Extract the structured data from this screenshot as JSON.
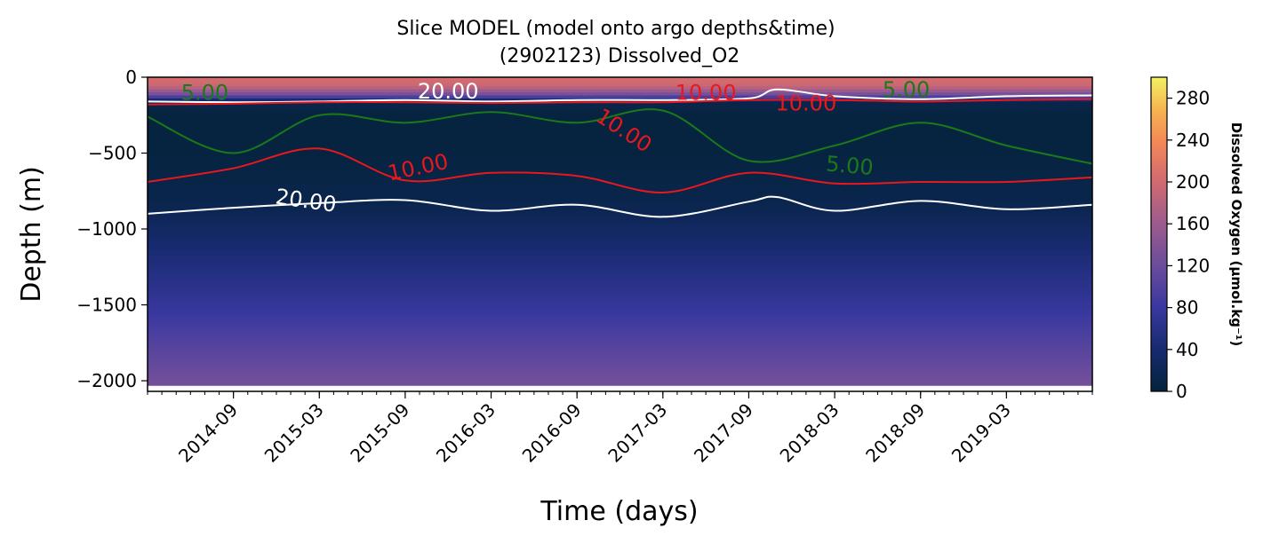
{
  "chart_data": {
    "type": "heatmap",
    "title_line1": "Slice MODEL (model onto argo depths&time)",
    "title_line2": "(2902123) Dissolved_O2",
    "xlabel": "Time (days)",
    "ylabel": "Depth (m)",
    "x_ticks": [
      "2014-09",
      "2015-03",
      "2015-09",
      "2016-03",
      "2016-09",
      "2017-03",
      "2017-09",
      "2018-03",
      "2018-09",
      "2019-03"
    ],
    "x_range": [
      "2014-03",
      "2019-09"
    ],
    "y_ticks": [
      0,
      -500,
      -1000,
      -1500,
      -2000
    ],
    "y_range": [
      -2070,
      0
    ],
    "data_depth_bottom": -2030,
    "colorbar": {
      "label": "Dissolved Oxygen (μmol.kg⁻¹)",
      "ticks": [
        0,
        40,
        80,
        120,
        160,
        200,
        240,
        280
      ],
      "range": [
        0,
        300
      ],
      "colormap": "thermal"
    },
    "depth_profile": {
      "depth": [
        0,
        -60,
        -120,
        -160,
        -250,
        -500,
        -800,
        -900,
        -1000,
        -1200,
        -1400,
        -1600,
        -1800,
        -2000
      ],
      "oxygen": [
        205,
        195,
        120,
        15,
        4,
        5,
        13,
        20,
        30,
        48,
        65,
        85,
        105,
        125
      ]
    },
    "contours": [
      {
        "level": "20.00",
        "color": "#ffffff",
        "name": "shallow",
        "dates": [
          "2014-03",
          "2014-09",
          "2015-03",
          "2015-09",
          "2016-03",
          "2016-09",
          "2017-03",
          "2017-09",
          "2017-11",
          "2018-03",
          "2018-09",
          "2019-03",
          "2019-09"
        ],
        "depths": [
          -160,
          -165,
          -160,
          -150,
          -160,
          -150,
          -150,
          -140,
          -80,
          -125,
          -145,
          -125,
          -120
        ]
      },
      {
        "level": "20.00",
        "color": "#ffffff",
        "name": "deep",
        "dates": [
          "2014-03",
          "2014-09",
          "2015-03",
          "2015-09",
          "2016-03",
          "2016-09",
          "2017-03",
          "2017-09",
          "2017-11",
          "2018-03",
          "2018-09",
          "2019-03",
          "2019-09"
        ],
        "depths": [
          -900,
          -860,
          -830,
          -810,
          -880,
          -840,
          -920,
          -820,
          -790,
          -880,
          -815,
          -870,
          -840
        ]
      },
      {
        "level": "10.00",
        "color": "#e8181c",
        "name": "shallow",
        "dates": [
          "2014-03",
          "2014-09",
          "2015-03",
          "2015-09",
          "2016-03",
          "2016-09",
          "2017-03",
          "2017-09",
          "2018-03",
          "2018-09",
          "2019-03",
          "2019-09"
        ],
        "depths": [
          -180,
          -175,
          -165,
          -165,
          -170,
          -165,
          -165,
          -150,
          -150,
          -160,
          -150,
          -145
        ]
      },
      {
        "level": "10.00",
        "color": "#e8181c",
        "name": "deep",
        "dates": [
          "2014-03",
          "2014-09",
          "2015-03",
          "2015-09",
          "2016-03",
          "2016-09",
          "2017-03",
          "2017-09",
          "2018-03",
          "2018-09",
          "2019-03",
          "2019-09"
        ],
        "depths": [
          -690,
          -600,
          -470,
          -680,
          -630,
          -650,
          -760,
          -630,
          -700,
          -690,
          -690,
          -660
        ]
      },
      {
        "level": "5.00",
        "color": "#1a7a1a",
        "name": "mid",
        "dates": [
          "2014-03",
          "2014-09",
          "2015-03",
          "2015-09",
          "2016-03",
          "2016-09",
          "2017-03",
          "2017-09",
          "2018-03",
          "2018-09",
          "2019-03",
          "2019-09"
        ],
        "depths": [
          -260,
          -500,
          -250,
          -300,
          -230,
          -300,
          -220,
          -550,
          -450,
          -300,
          -450,
          -570
        ]
      }
    ],
    "contour_labels": [
      {
        "text": "5.00",
        "color": "#1a7a1a",
        "date": "2014-07",
        "depth": -150,
        "rotate": 0
      },
      {
        "text": "20.00",
        "color": "#ffffff",
        "date": "2015-12",
        "depth": -140,
        "rotate": 0
      },
      {
        "text": "10.00",
        "color": "#e8181c",
        "date": "2017-06",
        "depth": -150,
        "rotate": 0
      },
      {
        "text": "5.00",
        "color": "#1a7a1a",
        "date": "2018-08",
        "depth": -130,
        "rotate": 0
      },
      {
        "text": "10.00",
        "color": "#e8181c",
        "date": "2018-01",
        "depth": -220,
        "rotate": 0
      },
      {
        "text": "10.00",
        "color": "#e8181c",
        "date": "2016-12",
        "depth": -390,
        "rotate": 33
      },
      {
        "text": "10.00",
        "color": "#e8181c",
        "date": "2015-10",
        "depth": -640,
        "rotate": -12
      },
      {
        "text": "5.00",
        "color": "#1a7a1a",
        "date": "2018-04",
        "depth": -630,
        "rotate": 5
      },
      {
        "text": "20.00",
        "color": "#ffffff",
        "date": "2015-02",
        "depth": -860,
        "rotate": 8
      }
    ]
  }
}
